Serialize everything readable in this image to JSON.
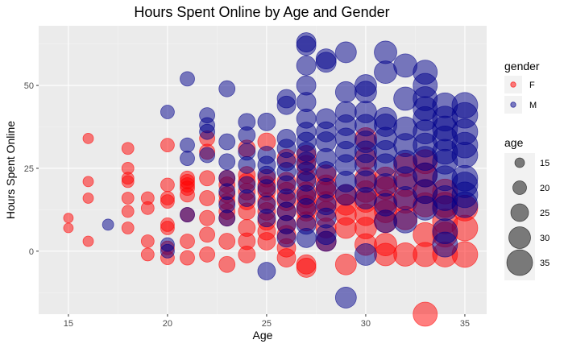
{
  "chart_data": {
    "type": "scatter",
    "title": "Hours Spent Online by Age and Gender",
    "xlabel": "Age",
    "ylabel": "Hours Spent Online",
    "xlim": [
      13.5,
      36.1
    ],
    "ylim": [
      -19,
      68
    ],
    "xticks": [
      15,
      20,
      25,
      30,
      35
    ],
    "yticks": [
      0,
      25,
      50
    ],
    "xtick_labels": [
      "15",
      "20",
      "25",
      "30",
      "35"
    ],
    "ytick_labels": [
      "0",
      "25",
      "50"
    ],
    "grid": true,
    "legend": {
      "placement": "right",
      "color": {
        "title": "gender",
        "entries": [
          {
            "label": "F",
            "color": "#ff0000"
          },
          {
            "label": "M",
            "color": "#00008b"
          }
        ]
      },
      "size": {
        "title": "age",
        "entries": [
          {
            "label": "15",
            "value": 15
          },
          {
            "label": "20",
            "value": 20
          },
          {
            "label": "25",
            "value": 25
          },
          {
            "label": "30",
            "value": 30
          },
          {
            "label": "35",
            "value": 35
          }
        ]
      }
    },
    "colors": {
      "F": "#ff0000",
      "M": "#00008b"
    },
    "series": [
      {
        "name": "F",
        "points": [
          [
            15,
            10
          ],
          [
            15,
            7
          ],
          [
            16,
            34
          ],
          [
            16,
            21
          ],
          [
            16,
            16
          ],
          [
            16,
            3
          ],
          [
            18,
            31
          ],
          [
            18,
            25
          ],
          [
            18,
            22
          ],
          [
            18,
            21
          ],
          [
            18,
            16
          ],
          [
            18,
            12
          ],
          [
            18,
            7
          ],
          [
            19,
            16
          ],
          [
            19,
            13
          ],
          [
            19,
            3
          ],
          [
            19,
            -1
          ],
          [
            20,
            32
          ],
          [
            20,
            20
          ],
          [
            20,
            16
          ],
          [
            20,
            15
          ],
          [
            20,
            8
          ],
          [
            20,
            7
          ],
          [
            20,
            1
          ],
          [
            20,
            -2
          ],
          [
            21,
            22
          ],
          [
            21,
            21
          ],
          [
            21,
            20
          ],
          [
            21,
            19
          ],
          [
            21,
            17
          ],
          [
            21,
            11
          ],
          [
            21,
            3
          ],
          [
            21,
            -2
          ],
          [
            22,
            34
          ],
          [
            22,
            30
          ],
          [
            22,
            22
          ],
          [
            22,
            16
          ],
          [
            22,
            10
          ],
          [
            22,
            5
          ],
          [
            22,
            -1
          ],
          [
            23,
            22
          ],
          [
            23,
            20
          ],
          [
            23,
            17
          ],
          [
            23,
            15
          ],
          [
            23,
            12
          ],
          [
            23,
            10
          ],
          [
            23,
            3
          ],
          [
            23,
            -4
          ],
          [
            24,
            31
          ],
          [
            24,
            23
          ],
          [
            24,
            21
          ],
          [
            24,
            18
          ],
          [
            24,
            15
          ],
          [
            24,
            12
          ],
          [
            24,
            7
          ],
          [
            24,
            3
          ],
          [
            24,
            -1
          ],
          [
            25,
            33
          ],
          [
            25,
            22
          ],
          [
            25,
            20
          ],
          [
            25,
            18
          ],
          [
            25,
            15
          ],
          [
            25,
            12
          ],
          [
            25,
            9
          ],
          [
            25,
            6
          ],
          [
            25,
            3
          ],
          [
            26,
            28
          ],
          [
            26,
            21
          ],
          [
            26,
            18
          ],
          [
            26,
            15
          ],
          [
            26,
            12
          ],
          [
            26,
            8
          ],
          [
            26,
            5
          ],
          [
            26,
            1
          ],
          [
            26,
            -2
          ],
          [
            27,
            29
          ],
          [
            27,
            26
          ],
          [
            27,
            22
          ],
          [
            27,
            18
          ],
          [
            27,
            16
          ],
          [
            27,
            14
          ],
          [
            27,
            12
          ],
          [
            27,
            9
          ],
          [
            27,
            -4
          ],
          [
            27,
            -5
          ],
          [
            28,
            23
          ],
          [
            28,
            20
          ],
          [
            28,
            18
          ],
          [
            28,
            15
          ],
          [
            28,
            12
          ],
          [
            28,
            7
          ],
          [
            28,
            3
          ],
          [
            29,
            17
          ],
          [
            29,
            14
          ],
          [
            29,
            11
          ],
          [
            29,
            7
          ],
          [
            29,
            -4
          ],
          [
            30,
            34
          ],
          [
            30,
            28
          ],
          [
            30,
            22
          ],
          [
            30,
            18
          ],
          [
            30,
            15
          ],
          [
            30,
            11
          ],
          [
            30,
            7
          ],
          [
            30,
            2
          ],
          [
            31,
            22
          ],
          [
            31,
            19
          ],
          [
            31,
            15
          ],
          [
            31,
            12
          ],
          [
            31,
            9
          ],
          [
            31,
            2
          ],
          [
            31,
            -1
          ],
          [
            32,
            26
          ],
          [
            32,
            20
          ],
          [
            32,
            15
          ],
          [
            32,
            10
          ],
          [
            32,
            -1
          ],
          [
            33,
            27
          ],
          [
            33,
            23
          ],
          [
            33,
            18
          ],
          [
            33,
            14
          ],
          [
            33,
            5
          ],
          [
            33,
            -1
          ],
          [
            33,
            -19
          ],
          [
            34,
            18
          ],
          [
            34,
            14
          ],
          [
            34,
            9
          ],
          [
            34,
            5
          ],
          [
            34,
            -1
          ],
          [
            35,
            13
          ],
          [
            35,
            7
          ],
          [
            35,
            -1
          ]
        ]
      },
      {
        "name": "M",
        "points": [
          [
            17,
            8
          ],
          [
            20,
            42
          ],
          [
            20,
            2
          ],
          [
            20,
            0
          ],
          [
            21,
            52
          ],
          [
            21,
            32
          ],
          [
            21,
            28
          ],
          [
            21,
            11
          ],
          [
            22,
            41
          ],
          [
            22,
            38
          ],
          [
            22,
            36
          ],
          [
            22,
            29
          ],
          [
            23,
            49
          ],
          [
            23,
            33
          ],
          [
            23,
            27
          ],
          [
            23,
            22
          ],
          [
            23,
            18
          ],
          [
            23,
            14
          ],
          [
            23,
            10
          ],
          [
            24,
            39
          ],
          [
            24,
            35
          ],
          [
            24,
            30
          ],
          [
            24,
            26
          ],
          [
            24,
            20
          ],
          [
            24,
            16
          ],
          [
            25,
            39
          ],
          [
            25,
            29
          ],
          [
            25,
            26
          ],
          [
            25,
            23
          ],
          [
            25,
            19
          ],
          [
            25,
            14
          ],
          [
            25,
            10
          ],
          [
            25,
            -6
          ],
          [
            26,
            46
          ],
          [
            26,
            44
          ],
          [
            26,
            34
          ],
          [
            26,
            31
          ],
          [
            26,
            27
          ],
          [
            26,
            24
          ],
          [
            26,
            20
          ],
          [
            26,
            16
          ],
          [
            26,
            12
          ],
          [
            26,
            8
          ],
          [
            26,
            4
          ],
          [
            27,
            63
          ],
          [
            27,
            62
          ],
          [
            27,
            56
          ],
          [
            27,
            50
          ],
          [
            27,
            45
          ],
          [
            27,
            40
          ],
          [
            27,
            36
          ],
          [
            27,
            33
          ],
          [
            27,
            30
          ],
          [
            27,
            27
          ],
          [
            27,
            24
          ],
          [
            27,
            21
          ],
          [
            27,
            17
          ],
          [
            27,
            13
          ],
          [
            27,
            8
          ],
          [
            27,
            4
          ],
          [
            28,
            58
          ],
          [
            28,
            57
          ],
          [
            28,
            40
          ],
          [
            28,
            36
          ],
          [
            28,
            33
          ],
          [
            28,
            28
          ],
          [
            28,
            24
          ],
          [
            28,
            19
          ],
          [
            28,
            14
          ],
          [
            28,
            10
          ],
          [
            28,
            5
          ],
          [
            28,
            3
          ],
          [
            29,
            60
          ],
          [
            29,
            48
          ],
          [
            29,
            42
          ],
          [
            29,
            38
          ],
          [
            29,
            34
          ],
          [
            29,
            30
          ],
          [
            29,
            26
          ],
          [
            29,
            21
          ],
          [
            29,
            17
          ],
          [
            29,
            -14
          ],
          [
            30,
            50
          ],
          [
            30,
            48
          ],
          [
            30,
            42
          ],
          [
            30,
            38
          ],
          [
            30,
            33
          ],
          [
            30,
            30
          ],
          [
            30,
            26
          ],
          [
            30,
            21
          ],
          [
            30,
            16
          ],
          [
            30,
            -1
          ],
          [
            31,
            60
          ],
          [
            31,
            54
          ],
          [
            31,
            40
          ],
          [
            31,
            38
          ],
          [
            31,
            34
          ],
          [
            31,
            30
          ],
          [
            31,
            26
          ],
          [
            31,
            20
          ],
          [
            31,
            14
          ],
          [
            31,
            9
          ],
          [
            32,
            56
          ],
          [
            32,
            46
          ],
          [
            32,
            37
          ],
          [
            32,
            32
          ],
          [
            32,
            27
          ],
          [
            32,
            22
          ],
          [
            32,
            16
          ],
          [
            32,
            9
          ],
          [
            33,
            54
          ],
          [
            33,
            50
          ],
          [
            33,
            46
          ],
          [
            33,
            43
          ],
          [
            33,
            40
          ],
          [
            33,
            36
          ],
          [
            33,
            32
          ],
          [
            33,
            28
          ],
          [
            33,
            23
          ],
          [
            33,
            18
          ],
          [
            33,
            13
          ],
          [
            34,
            44
          ],
          [
            34,
            40
          ],
          [
            34,
            37
          ],
          [
            34,
            34
          ],
          [
            34,
            30
          ],
          [
            34,
            27
          ],
          [
            34,
            22
          ],
          [
            34,
            16
          ],
          [
            34,
            13
          ],
          [
            34,
            6
          ],
          [
            34,
            2
          ],
          [
            35,
            44
          ],
          [
            35,
            41
          ],
          [
            35,
            36
          ],
          [
            35,
            32
          ],
          [
            35,
            29
          ],
          [
            35,
            22
          ],
          [
            35,
            20
          ],
          [
            35,
            17
          ],
          [
            35,
            14
          ]
        ]
      }
    ]
  }
}
